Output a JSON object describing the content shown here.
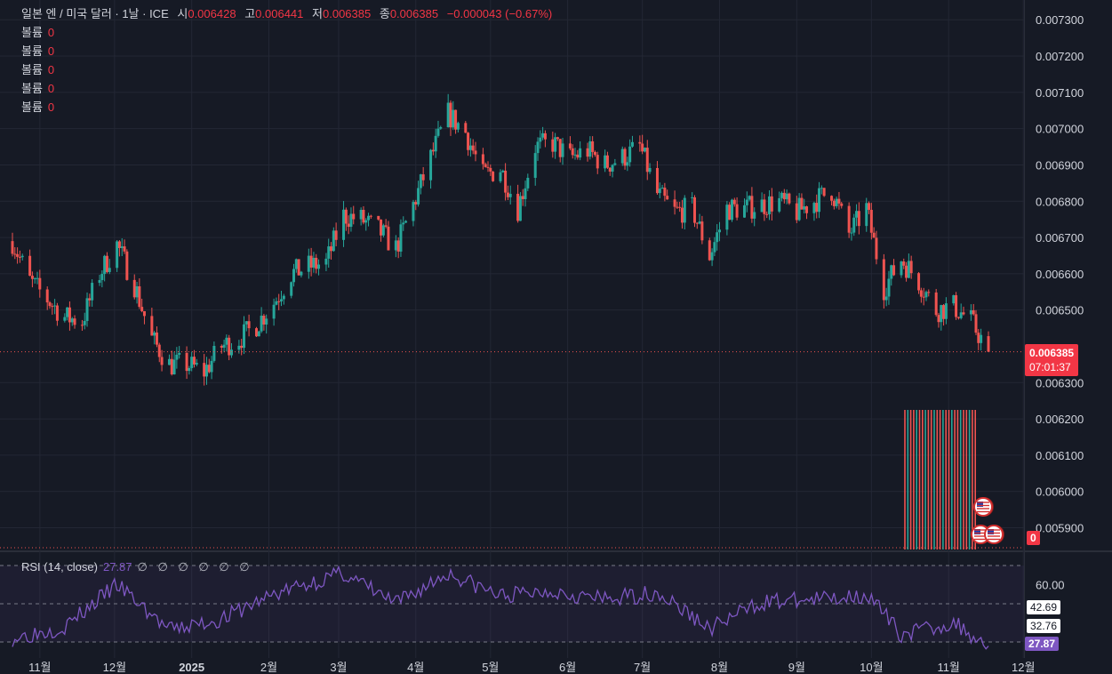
{
  "header": {
    "symbol": "일본 엔 / 미국 달러 · 1날 · ICE",
    "open_label": "시",
    "open": "0.006428",
    "high_label": "고",
    "high": "0.006441",
    "low_label": "저",
    "low": "0.006385",
    "close_label": "종",
    "close": "0.006385",
    "change": "−0.000043 (−0.67%)"
  },
  "volume_rows": [
    {
      "label": "볼륨",
      "value": "0"
    },
    {
      "label": "볼륨",
      "value": "0"
    },
    {
      "label": "볼륨",
      "value": "0"
    },
    {
      "label": "볼륨",
      "value": "0"
    },
    {
      "label": "볼륨",
      "value": "0"
    }
  ],
  "price_tag": {
    "price": "0.006385",
    "countdown": "07:01:37"
  },
  "volume_tag": "0",
  "rsi": {
    "name": "RSI (14, close)",
    "value": "27.87",
    "extra": "∅ ∅ ∅ ∅ ∅ ∅",
    "axis_labels": [
      "60.00"
    ],
    "tags": [
      "42.69",
      "32.76",
      "27.87"
    ]
  },
  "colors": {
    "up": "#26a69a",
    "down": "#ef5350",
    "rsi": "#7e57c2",
    "bg": "#161a25",
    "grid": "#232734",
    "text": "#d1d4dc"
  },
  "icons": [
    "us-flag-event-icon",
    "us-flag-event-icon",
    "event-icon"
  ],
  "chart_data": {
    "type": "candlestick",
    "title": "일본 엔 / 미국 달러 · 1날 · ICE",
    "price_axis": {
      "ticks": [
        "0.007300",
        "0.007200",
        "0.007100",
        "0.007000",
        "0.006900",
        "0.006800",
        "0.006700",
        "0.006600",
        "0.006500",
        "0.006300",
        "0.006200",
        "0.006100",
        "0.006000",
        "0.005900"
      ],
      "ylim": [
        0.00584,
        0.00733
      ]
    },
    "time_axis": [
      "11월",
      "12월",
      "2025",
      "2월",
      "3월",
      "4월",
      "5월",
      "6월",
      "7월",
      "8월",
      "9월",
      "10월",
      "11월",
      "12월"
    ],
    "close_series_approx": [
      {
        "date": "2024-10-21",
        "close": 0.00669
      },
      {
        "date": "2024-10-28",
        "close": 0.00658
      },
      {
        "date": "2024-11-04",
        "close": 0.00653
      },
      {
        "date": "2024-11-11",
        "close": 0.00648
      },
      {
        "date": "2024-11-18",
        "close": 0.00647
      },
      {
        "date": "2024-11-25",
        "close": 0.0066
      },
      {
        "date": "2024-12-02",
        "close": 0.00668
      },
      {
        "date": "2024-12-09",
        "close": 0.00657
      },
      {
        "date": "2024-12-16",
        "close": 0.00642
      },
      {
        "date": "2024-12-23",
        "close": 0.00635
      },
      {
        "date": "2024-12-30",
        "close": 0.00635
      },
      {
        "date": "2025-01-06",
        "close": 0.00633
      },
      {
        "date": "2025-01-13",
        "close": 0.0064
      },
      {
        "date": "2025-01-20",
        "close": 0.00642
      },
      {
        "date": "2025-01-27",
        "close": 0.00646
      },
      {
        "date": "2025-02-03",
        "close": 0.00652
      },
      {
        "date": "2025-02-10",
        "close": 0.0066
      },
      {
        "date": "2025-02-17",
        "close": 0.00662
      },
      {
        "date": "2025-02-24",
        "close": 0.00663
      },
      {
        "date": "2025-03-03",
        "close": 0.00676
      },
      {
        "date": "2025-03-10",
        "close": 0.00675
      },
      {
        "date": "2025-03-17",
        "close": 0.00672
      },
      {
        "date": "2025-03-24",
        "close": 0.00667
      },
      {
        "date": "2025-03-31",
        "close": 0.00679
      },
      {
        "date": "2025-04-07",
        "close": 0.00692
      },
      {
        "date": "2025-04-14",
        "close": 0.00704
      },
      {
        "date": "2025-04-21",
        "close": 0.00699
      },
      {
        "date": "2025-04-28",
        "close": 0.00687
      },
      {
        "date": "2025-05-05",
        "close": 0.00689
      },
      {
        "date": "2025-05-12",
        "close": 0.00678
      },
      {
        "date": "2025-05-19",
        "close": 0.00695
      },
      {
        "date": "2025-05-26",
        "close": 0.00696
      },
      {
        "date": "2025-06-02",
        "close": 0.00692
      },
      {
        "date": "2025-06-09",
        "close": 0.00694
      },
      {
        "date": "2025-06-16",
        "close": 0.0069
      },
      {
        "date": "2025-06-23",
        "close": 0.00692
      },
      {
        "date": "2025-06-30",
        "close": 0.00695
      },
      {
        "date": "2025-07-07",
        "close": 0.00682
      },
      {
        "date": "2025-07-14",
        "close": 0.00677
      },
      {
        "date": "2025-07-21",
        "close": 0.00678
      },
      {
        "date": "2025-07-28",
        "close": 0.00665
      },
      {
        "date": "2025-08-04",
        "close": 0.00678
      },
      {
        "date": "2025-08-11",
        "close": 0.00678
      },
      {
        "date": "2025-08-18",
        "close": 0.00679
      },
      {
        "date": "2025-08-25",
        "close": 0.0068
      },
      {
        "date": "2025-09-01",
        "close": 0.00677
      },
      {
        "date": "2025-09-08",
        "close": 0.0068
      },
      {
        "date": "2025-09-15",
        "close": 0.00683
      },
      {
        "date": "2025-09-22",
        "close": 0.00671
      },
      {
        "date": "2025-09-29",
        "close": 0.00678
      },
      {
        "date": "2025-10-06",
        "close": 0.00656
      },
      {
        "date": "2025-10-13",
        "close": 0.00664
      },
      {
        "date": "2025-10-20",
        "close": 0.00658
      },
      {
        "date": "2025-10-27",
        "close": 0.0065
      },
      {
        "date": "2025-11-03",
        "close": 0.00651
      },
      {
        "date": "2025-11-10",
        "close": 0.00647
      },
      {
        "date": "2025-11-17",
        "close": 0.006385
      }
    ],
    "last_price": 0.006385,
    "rsi_series_approx": [
      {
        "date": "2024-10-21",
        "rsi": 32
      },
      {
        "date": "2024-11-11",
        "rsi": 38
      },
      {
        "date": "2024-12-02",
        "rsi": 60
      },
      {
        "date": "2024-12-23",
        "rsi": 36
      },
      {
        "date": "2025-01-13",
        "rsi": 42
      },
      {
        "date": "2025-02-03",
        "rsi": 55
      },
      {
        "date": "2025-03-03",
        "rsi": 66
      },
      {
        "date": "2025-03-24",
        "rsi": 50
      },
      {
        "date": "2025-04-14",
        "rsi": 66
      },
      {
        "date": "2025-05-05",
        "rsi": 54
      },
      {
        "date": "2025-05-26",
        "rsi": 57
      },
      {
        "date": "2025-06-16",
        "rsi": 52
      },
      {
        "date": "2025-07-07",
        "rsi": 56
      },
      {
        "date": "2025-07-28",
        "rsi": 37
      },
      {
        "date": "2025-08-18",
        "rsi": 51
      },
      {
        "date": "2025-09-08",
        "rsi": 52
      },
      {
        "date": "2025-09-29",
        "rsi": 55
      },
      {
        "date": "2025-10-13",
        "rsi": 34
      },
      {
        "date": "2025-11-03",
        "rsi": 40
      },
      {
        "date": "2025-11-17",
        "rsi": 27.87
      }
    ],
    "rsi_levels": [
      70,
      50,
      30
    ],
    "grid": true
  }
}
